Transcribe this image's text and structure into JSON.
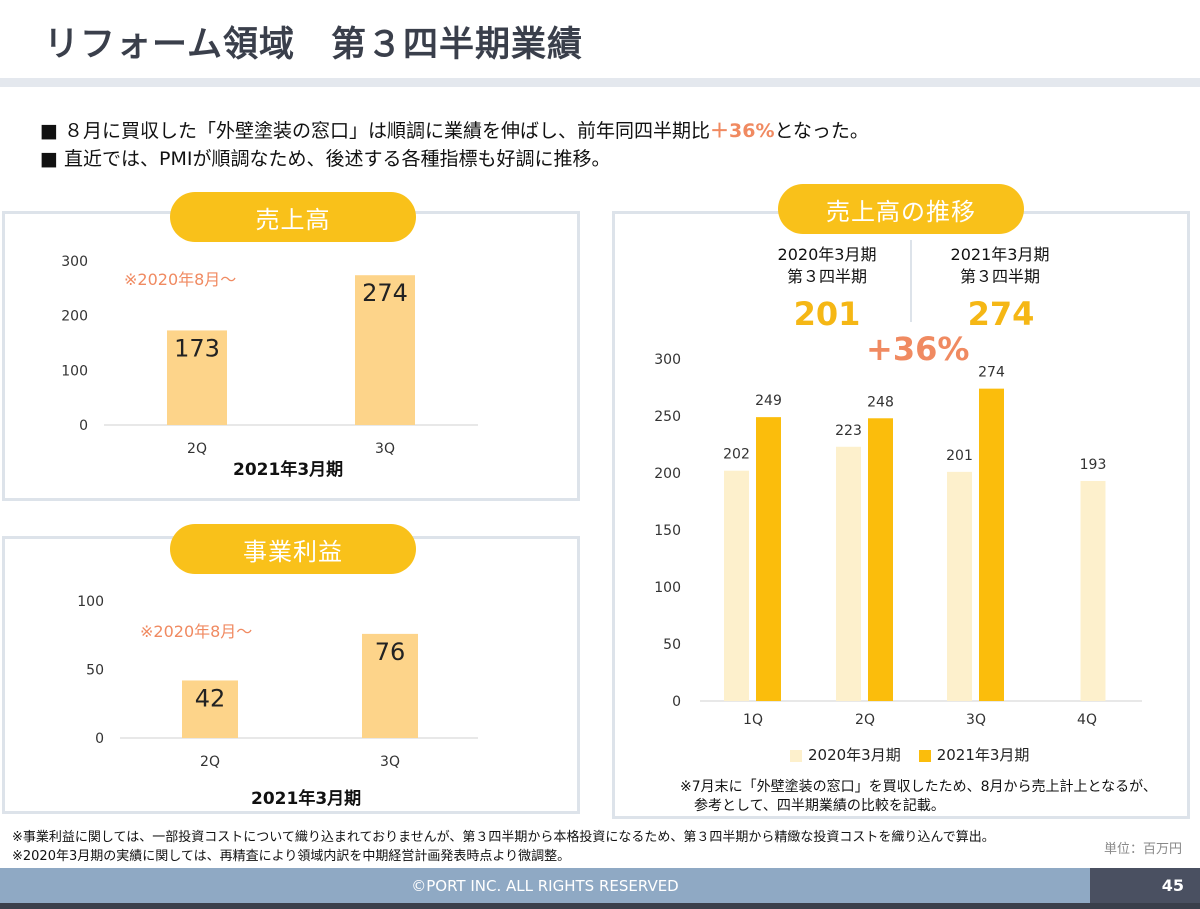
{
  "header": {
    "title": "リフォーム領域　第３四半期業績"
  },
  "bullets": {
    "line1_pre": "■ ８月に買収した「外壁塗装の窓口」は順調に業績を伸ばし、前年同四半期比",
    "line1_hl": "＋36%",
    "line1_post": "となった。",
    "line2": "■ 直近では、PMIが順調なため、後述する各種指標も好調に推移。"
  },
  "colors": {
    "accent": "#f9c11a",
    "bar_light": "#fdd48a",
    "bar_pale": "#fdf0cc",
    "bar_strong": "#fbbd0c",
    "pink": "#f08a61"
  },
  "chart_data": [
    {
      "type": "bar",
      "title": "売上高",
      "annotation": "※2020年8月～",
      "categories": [
        "2Q",
        "3Q"
      ],
      "values": [
        173,
        274
      ],
      "xlabel": "2021年3月期",
      "yticks": [
        0,
        100,
        200,
        300
      ],
      "ylim": [
        0,
        300
      ],
      "grid": false
    },
    {
      "type": "bar",
      "title": "事業利益",
      "annotation": "※2020年8月～",
      "categories": [
        "2Q",
        "3Q"
      ],
      "values": [
        42,
        76
      ],
      "xlabel": "2021年3月期",
      "yticks": [
        0,
        50,
        100
      ],
      "ylim": [
        0,
        100
      ],
      "grid": false
    },
    {
      "type": "bar",
      "title": "売上高の推移",
      "categories": [
        "1Q",
        "2Q",
        "3Q",
        "4Q"
      ],
      "series": [
        {
          "name": "2020年3月期",
          "values": [
            202,
            223,
            201,
            193
          ]
        },
        {
          "name": "2021年3月期",
          "values": [
            249,
            248,
            274,
            null
          ]
        }
      ],
      "yticks": [
        0,
        50,
        100,
        150,
        200,
        250,
        300
      ],
      "ylim": [
        0,
        300
      ],
      "legend": "bottom",
      "grid": false
    }
  ],
  "comparison": {
    "left_head_1": "2020年3月期",
    "left_head_2": "第３四半期",
    "left_value": "201",
    "right_head_1": "2021年3月期",
    "right_head_2": "第３四半期",
    "right_value": "274",
    "growth": "+36%"
  },
  "right_note": {
    "line1": "※7月末に「外壁塗装の窓口」を買収したため、8月から売上計上となるが、",
    "line2": "参考として、四半期業績の比較を記載。"
  },
  "footnotes": {
    "line1": "※事業利益に関しては、一部投資コストについて織り込まれておりませんが、第３四半期から本格投資になるため、第３四半期から精緻な投資コストを織り込んで算出。",
    "line2": "※2020年3月期の実績に関しては、再精査により領域内訳を中期経営計画発表時点より微調整。"
  },
  "unit": "単位：百万円",
  "footer": {
    "copyright": "©PORT INC. ALL RIGHTS RESERVED",
    "page": "45"
  }
}
